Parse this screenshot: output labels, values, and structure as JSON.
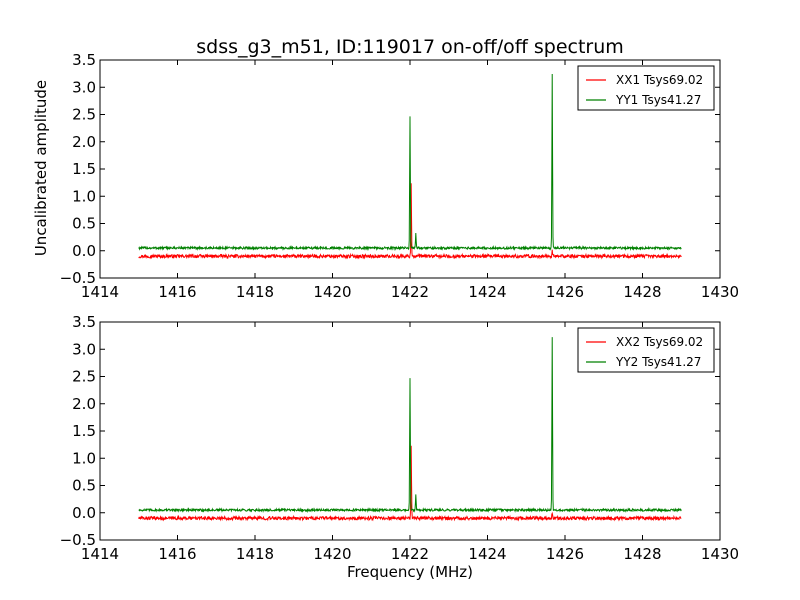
{
  "figure": {
    "title": "sdss_g3_m51, ID:119017 on-off/off spectrum",
    "xlabel": "Frequency (MHz)",
    "ylabel": "Uncalibrated amplitude"
  },
  "chart_data": [
    {
      "type": "line",
      "title": "sdss_g3_m51, ID:119017 on-off/off spectrum",
      "xlabel": "",
      "ylabel": "Uncalibrated amplitude",
      "xlim": [
        1414,
        1430
      ],
      "ylim": [
        -0.5,
        3.5
      ],
      "xticks": [
        "1414",
        "1416",
        "1418",
        "1420",
        "1422",
        "1424",
        "1426",
        "1428",
        "1430"
      ],
      "yticks": [
        "−0.5",
        "0.0",
        "0.5",
        "1.0",
        "1.5",
        "2.0",
        "2.5",
        "3.0",
        "3.5"
      ],
      "grid": false,
      "legend_position": "top-right",
      "series": [
        {
          "name": "XX1 Tsys69.02",
          "color": "#ff0000",
          "baseline": -0.1,
          "noise": 0.03,
          "x_range": [
            1415.0,
            1429.0
          ],
          "features": [
            {
              "x": 1422.03,
              "y": 1.35
            },
            {
              "x": 1425.67,
              "y": 0.1
            }
          ]
        },
        {
          "name": "YY1 Tsys41.27",
          "color": "#008000",
          "baseline": 0.05,
          "noise": 0.02,
          "x_range": [
            1415.0,
            1429.0
          ],
          "features": [
            {
              "x": 1422.0,
              "y": 2.43
            },
            {
              "x": 1422.15,
              "y": 0.27
            },
            {
              "x": 1425.67,
              "y": 3.18
            }
          ]
        }
      ]
    },
    {
      "type": "line",
      "title": "",
      "xlabel": "Frequency (MHz)",
      "ylabel": "",
      "xlim": [
        1414,
        1430
      ],
      "ylim": [
        -0.5,
        3.5
      ],
      "xticks": [
        "1414",
        "1416",
        "1418",
        "1420",
        "1422",
        "1424",
        "1426",
        "1428",
        "1430"
      ],
      "yticks": [
        "−0.5",
        "0.0",
        "0.5",
        "1.0",
        "1.5",
        "2.0",
        "2.5",
        "3.0",
        "3.5"
      ],
      "grid": false,
      "legend_position": "top-right",
      "series": [
        {
          "name": "XX2 Tsys69.02",
          "color": "#ff0000",
          "baseline": -0.1,
          "noise": 0.03,
          "x_range": [
            1415.0,
            1429.0
          ],
          "features": [
            {
              "x": 1422.03,
              "y": 1.35
            },
            {
              "x": 1425.67,
              "y": 0.1
            }
          ]
        },
        {
          "name": "YY2 Tsys41.27",
          "color": "#008000",
          "baseline": 0.05,
          "noise": 0.02,
          "x_range": [
            1415.0,
            1429.0
          ],
          "features": [
            {
              "x": 1422.0,
              "y": 2.43
            },
            {
              "x": 1422.15,
              "y": 0.27
            },
            {
              "x": 1425.67,
              "y": 3.18
            }
          ]
        }
      ]
    }
  ]
}
